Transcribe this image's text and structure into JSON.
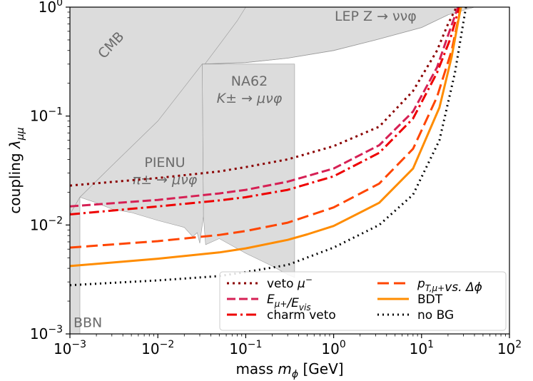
{
  "chart_data": {
    "type": "line",
    "xlabel": "mass m_φ [GeV]",
    "ylabel": "coupling λ_μμ",
    "xscale": "log",
    "yscale": "log",
    "xlim": [
      0.001,
      100
    ],
    "ylim": [
      0.001,
      1
    ],
    "x_ticks": [
      {
        "value": 0.001,
        "base": "10",
        "exp": "−3"
      },
      {
        "value": 0.01,
        "base": "10",
        "exp": "−2"
      },
      {
        "value": 0.1,
        "base": "10",
        "exp": "−1"
      },
      {
        "value": 1,
        "base": "10",
        "exp": "0"
      },
      {
        "value": 10,
        "base": "10",
        "exp": "1"
      },
      {
        "value": 100,
        "base": "10",
        "exp": "2"
      }
    ],
    "y_ticks": [
      {
        "value": 0.001,
        "base": "10",
        "exp": "−3"
      },
      {
        "value": 0.01,
        "base": "10",
        "exp": "−2"
      },
      {
        "value": 0.1,
        "base": "10",
        "exp": "−1"
      },
      {
        "value": 1,
        "base": "10",
        "exp": "0"
      }
    ],
    "excluded_region_color": "#dcdcdc",
    "excluded_regions": [
      {
        "name": "LEP Z → ννφ",
        "label_lines": [
          "LEP Z → ννφ"
        ],
        "label_at": [
          3,
          0.75
        ],
        "label_rotation": 0
      },
      {
        "name": "CMB",
        "label_lines": [
          "CMB"
        ],
        "label_at": [
          0.0032,
          0.42
        ],
        "label_rotation": -47
      },
      {
        "name": "NA62",
        "label_lines": [
          "NA62",
          "K± → μνφ"
        ],
        "label_at": [
          0.11,
          0.19
        ],
        "label_rotation": 0
      },
      {
        "name": "PIENU",
        "label_lines": [
          "PIENU",
          "π± → μνφ"
        ],
        "label_at": [
          0.012,
          0.034
        ],
        "label_rotation": 0
      },
      {
        "name": "BBN",
        "label_lines": [
          "BBN"
        ],
        "label_at": [
          0.0016,
          0.00115
        ],
        "label_rotation": 0
      }
    ],
    "series": [
      {
        "name": "veto μ⁻",
        "color": "#8b0000",
        "dash": "3,5",
        "x": [
          0.001,
          0.01,
          0.05,
          0.1,
          0.3,
          1,
          3.3,
          8,
          15,
          20,
          25
        ],
        "y": [
          0.023,
          0.027,
          0.031,
          0.034,
          0.04,
          0.053,
          0.08,
          0.17,
          0.4,
          0.7,
          1.0
        ]
      },
      {
        "name": "E_μ+/E_vis",
        "color": "#d62054",
        "dash": "12,5",
        "x": [
          0.001,
          0.01,
          0.05,
          0.1,
          0.3,
          1,
          3.3,
          8,
          15,
          20,
          26
        ],
        "y": [
          0.0148,
          0.017,
          0.0195,
          0.021,
          0.025,
          0.033,
          0.054,
          0.11,
          0.28,
          0.55,
          1.0
        ]
      },
      {
        "name": "charm veto",
        "color": "#ee0000",
        "dash": "14,5,3,5",
        "x": [
          0.001,
          0.01,
          0.05,
          0.1,
          0.3,
          1,
          3.3,
          8,
          15,
          21,
          27
        ],
        "y": [
          0.0125,
          0.0148,
          0.0168,
          0.018,
          0.021,
          0.028,
          0.046,
          0.095,
          0.25,
          0.5,
          1.0
        ]
      },
      {
        "name": "p_T,μ+ vs. Δφ",
        "color": "#ff4500",
        "dash": "16,7",
        "x": [
          0.001,
          0.01,
          0.05,
          0.1,
          0.3,
          1,
          3.3,
          8,
          15,
          22,
          28
        ],
        "y": [
          0.0062,
          0.0071,
          0.0081,
          0.0088,
          0.0105,
          0.0145,
          0.024,
          0.05,
          0.15,
          0.4,
          1.0
        ]
      },
      {
        "name": "BDT",
        "color": "#ff8c00",
        "dash": "",
        "x": [
          0.001,
          0.01,
          0.05,
          0.1,
          0.3,
          0.5,
          1,
          3.3,
          8,
          16,
          22,
          28
        ],
        "y": [
          0.0042,
          0.0049,
          0.0056,
          0.0061,
          0.0073,
          0.0082,
          0.0098,
          0.016,
          0.033,
          0.12,
          0.35,
          1.0
        ]
      },
      {
        "name": "no BG",
        "color": "#000000",
        "dash": "2,5",
        "x": [
          0.001,
          0.01,
          0.05,
          0.1,
          0.3,
          1,
          3.3,
          8,
          16,
          24,
          32
        ],
        "y": [
          0.0028,
          0.0031,
          0.0034,
          0.0037,
          0.0043,
          0.0062,
          0.01,
          0.019,
          0.06,
          0.25,
          1.0
        ]
      }
    ],
    "legend": {
      "placement": "lower right",
      "columns": 2,
      "entries": [
        {
          "series": 0,
          "text": "veto ",
          "math": "μ",
          "sup": "−",
          "sub": "",
          "rest": ""
        },
        {
          "series": 1,
          "text": "",
          "math": "E",
          "sup": "",
          "sub": "μ+",
          "rest": "/E",
          "rest_sub": "vis"
        },
        {
          "series": 2,
          "text": "charm veto",
          "math": "",
          "sup": "",
          "sub": "",
          "rest": ""
        },
        {
          "series": 3,
          "text": "",
          "math": "p",
          "sup": "",
          "sub": "T,μ+",
          "rest": "vs. Δϕ"
        },
        {
          "series": 4,
          "text": "BDT",
          "math": "",
          "sup": "",
          "sub": "",
          "rest": ""
        },
        {
          "series": 5,
          "text": "no BG",
          "math": "",
          "sup": "",
          "sub": "",
          "rest": ""
        }
      ]
    }
  }
}
